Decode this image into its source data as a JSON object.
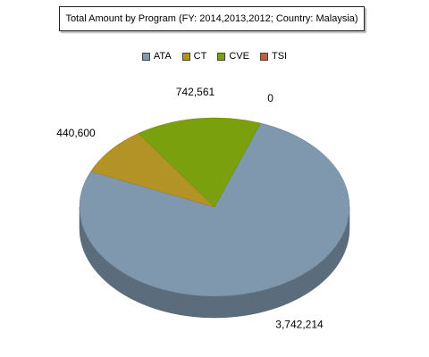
{
  "chart_data": {
    "type": "pie",
    "title": "Total Amount by Program (FY: 2014,2013,2012; Country: Malaysia)",
    "legend_position": "top-center",
    "categories": [
      "ATA",
      "CT",
      "CVE",
      "TSI"
    ],
    "values": [
      3742214,
      440600,
      742561,
      0
    ],
    "data_labels": [
      "3,742,214",
      "440,600",
      "742,561",
      "0"
    ],
    "colors": [
      "#7f98ad",
      "#b39226",
      "#7ba00d",
      "#c0603a"
    ],
    "style": "3d"
  }
}
